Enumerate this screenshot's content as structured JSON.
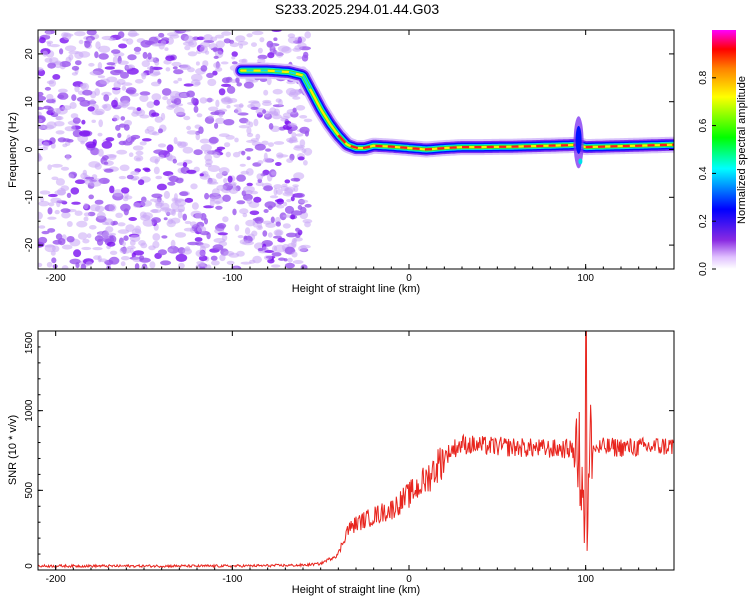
{
  "figure_title": "S233.2025.294.01.44.G03",
  "colors": {
    "snr_line": "#e8251e",
    "axis": "#000000",
    "scatter": "#8a2be2"
  },
  "chart_data": [
    {
      "type": "heatmap",
      "title": "S233.2025.294.01.44.G03",
      "xlabel": "Height of straight line (km)",
      "ylabel": "Frequency (Hz)",
      "xlim": [
        -210,
        150
      ],
      "ylim": [
        -25,
        25
      ],
      "xticks": [
        -200,
        -100,
        0,
        100
      ],
      "yticks": [
        -20,
        -10,
        0,
        10,
        20
      ],
      "ridge": {
        "x": [
          -95,
          -80,
          -68,
          -60,
          -55,
          -50,
          -45,
          -40,
          -35,
          -30,
          -25,
          -20,
          -10,
          0,
          10,
          20,
          30,
          40,
          60,
          80,
          90,
          95,
          100,
          110,
          130,
          150
        ],
        "y": [
          16.5,
          16.5,
          16.2,
          15.5,
          12,
          8.5,
          5.5,
          3,
          1,
          0.3,
          0.3,
          0.8,
          0.6,
          0.3,
          0,
          0.3,
          0.5,
          0.5,
          0.6,
          0.8,
          0.9,
          1,
          0.5,
          0.6,
          0.8,
          1.0
        ]
      },
      "noise_region_x": [
        -210,
        -57
      ],
      "colorbar": {
        "label": "Normalized spectral amplitude",
        "range": [
          0,
          1
        ],
        "ticks": [
          "0.0",
          "0.2",
          "0.4",
          "0.6",
          "0.8"
        ]
      }
    },
    {
      "type": "line",
      "xlabel": "Height of straight line (km)",
      "ylabel": "SNR (10 * v/v)",
      "xlim": [
        -210,
        150
      ],
      "ylim": [
        0,
        1500
      ],
      "xticks": [
        -200,
        -100,
        0,
        100
      ],
      "yticks": [
        0,
        500,
        1000,
        1500
      ],
      "series": [
        {
          "name": "SNR",
          "x": [
            -210,
            -150,
            -100,
            -60,
            -50,
            -40,
            -35,
            -30,
            -20,
            -10,
            0,
            10,
            20,
            25,
            30,
            40,
            60,
            80,
            90,
            95,
            98,
            100,
            102,
            105,
            110,
            130,
            150
          ],
          "values": [
            25,
            25,
            25,
            30,
            40,
            100,
            250,
            290,
            340,
            380,
            470,
            570,
            710,
            760,
            790,
            780,
            770,
            760,
            760,
            760,
            850,
            500,
            780,
            760,
            770,
            770,
            780
          ]
        }
      ]
    }
  ]
}
